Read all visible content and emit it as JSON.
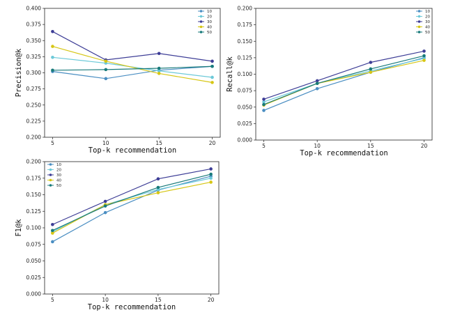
{
  "chart_data": [
    {
      "type": "line",
      "x": [
        5,
        10,
        15,
        20
      ],
      "xticks": [
        "5",
        "10",
        "15",
        "20"
      ],
      "xlabel": "Top-k recommendation",
      "ylabel": "Precision@k",
      "ylim": [
        0.2,
        0.4
      ],
      "yticks": [
        "0.200",
        "0.225",
        "0.250",
        "0.275",
        "0.300",
        "0.325",
        "0.350",
        "0.375",
        "0.400"
      ],
      "legend_position": "top-right",
      "series": [
        {
          "name": "10",
          "color": "#4a8ec2",
          "values": [
            0.302,
            0.291,
            0.304,
            0.31
          ]
        },
        {
          "name": "20",
          "color": "#6cc9d8",
          "values": [
            0.324,
            0.315,
            0.303,
            0.293
          ]
        },
        {
          "name": "30",
          "color": "#3d3d96",
          "values": [
            0.364,
            0.32,
            0.33,
            0.318
          ]
        },
        {
          "name": "40",
          "color": "#d6c614",
          "values": [
            0.341,
            0.318,
            0.299,
            0.285
          ]
        },
        {
          "name": "50",
          "color": "#187a7a",
          "values": [
            0.304,
            0.305,
            0.307,
            0.31
          ]
        }
      ]
    },
    {
      "type": "line",
      "x": [
        5,
        10,
        15,
        20
      ],
      "xticks": [
        "5",
        "10",
        "15",
        "20"
      ],
      "xlabel": "Top-k recommendation",
      "ylabel": "Recall@k",
      "ylim": [
        0.0,
        0.2
      ],
      "yticks": [
        "0.000",
        "0.025",
        "0.050",
        "0.075",
        "0.100",
        "0.125",
        "0.150",
        "0.175",
        "0.200"
      ],
      "legend_position": "top-right",
      "series": [
        {
          "name": "10",
          "color": "#4a8ec2",
          "values": [
            0.045,
            0.078,
            0.103,
            0.125
          ]
        },
        {
          "name": "20",
          "color": "#6cc9d8",
          "values": [
            0.058,
            0.086,
            0.105,
            0.124
          ]
        },
        {
          "name": "30",
          "color": "#3d3d96",
          "values": [
            0.062,
            0.09,
            0.118,
            0.135
          ]
        },
        {
          "name": "40",
          "color": "#d6c614",
          "values": [
            0.053,
            0.086,
            0.103,
            0.121
          ]
        },
        {
          "name": "50",
          "color": "#187a7a",
          "values": [
            0.054,
            0.086,
            0.108,
            0.128
          ]
        }
      ]
    },
    {
      "type": "line",
      "x": [
        5,
        10,
        15,
        20
      ],
      "xticks": [
        "5",
        "10",
        "15",
        "20"
      ],
      "xlabel": "Top-k recommendation",
      "ylabel": "F1@k",
      "ylim": [
        0.0,
        0.2
      ],
      "yticks": [
        "0.000",
        "0.025",
        "0.050",
        "0.075",
        "0.100",
        "0.125",
        "0.150",
        "0.175",
        "0.200"
      ],
      "legend_position": "top-left",
      "series": [
        {
          "name": "10",
          "color": "#4a8ec2",
          "values": [
            0.079,
            0.123,
            0.157,
            0.178
          ]
        },
        {
          "name": "20",
          "color": "#6cc9d8",
          "values": [
            0.094,
            0.135,
            0.158,
            0.175
          ]
        },
        {
          "name": "30",
          "color": "#3d3d96",
          "values": [
            0.105,
            0.14,
            0.174,
            0.189
          ]
        },
        {
          "name": "40",
          "color": "#d6c614",
          "values": [
            0.092,
            0.135,
            0.153,
            0.169
          ]
        },
        {
          "name": "50",
          "color": "#187a7a",
          "values": [
            0.096,
            0.133,
            0.161,
            0.181
          ]
        }
      ]
    }
  ]
}
